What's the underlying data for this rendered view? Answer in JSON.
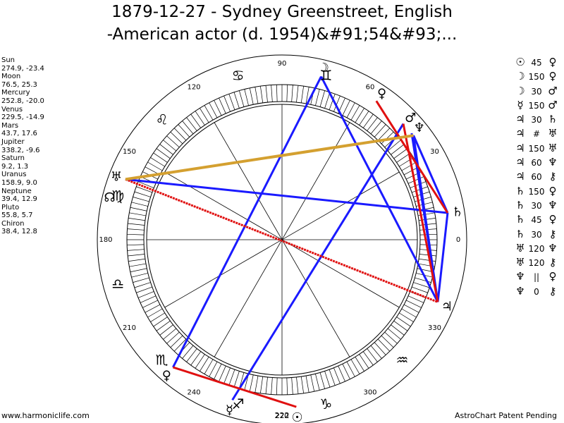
{
  "title_line1": "1879-12-27 - Sydney Greenstreet, English",
  "title_line2": "-American actor (d. 1954)&#91;54&#93;...",
  "footer_left": "www.harmoniclife.com",
  "footer_right": "AstroChart Patent Pending",
  "planets": [
    {
      "name": "Sun",
      "coords": "274.9, -23.4"
    },
    {
      "name": "Moon",
      "coords": "76.5, 25.3"
    },
    {
      "name": "Mercury",
      "coords": "252.8, -20.0"
    },
    {
      "name": "Venus",
      "coords": "229.5, -14.9"
    },
    {
      "name": "Mars",
      "coords": "43.7, 17.6"
    },
    {
      "name": "Jupiter",
      "coords": "338.2, -9.6"
    },
    {
      "name": "Saturn",
      "coords": "9.2, 1.3"
    },
    {
      "name": "Uranus",
      "coords": "158.9, 9.0"
    },
    {
      "name": "Neptune",
      "coords": "39.4, 12.9"
    },
    {
      "name": "Pluto",
      "coords": "55.8, 5.7"
    },
    {
      "name": "Chiron",
      "coords": "38.4, 12.8"
    }
  ],
  "aspects": [
    {
      "p1": "☉",
      "value": "45",
      "p2": "♀"
    },
    {
      "p1": "☽",
      "value": "150",
      "p2": "♀"
    },
    {
      "p1": "☽",
      "value": "30",
      "p2": "♂"
    },
    {
      "p1": "☿",
      "value": "150",
      "p2": "♂"
    },
    {
      "p1": "♃",
      "value": "30",
      "p2": "♄"
    },
    {
      "p1": "♃",
      "value": "#",
      "p2": "♅"
    },
    {
      "p1": "♃",
      "value": "150",
      "p2": "♅"
    },
    {
      "p1": "♃",
      "value": "60",
      "p2": "♆"
    },
    {
      "p1": "♃",
      "value": "60",
      "p2": "⚷"
    },
    {
      "p1": "♄",
      "value": "150",
      "p2": "♀"
    },
    {
      "p1": "♄",
      "value": "30",
      "p2": "♆"
    },
    {
      "p1": "♄",
      "value": "45",
      "p2": "♀"
    },
    {
      "p1": "♄",
      "value": "30",
      "p2": "⚷"
    },
    {
      "p1": "♅",
      "value": "120",
      "p2": "♆"
    },
    {
      "p1": "♅",
      "value": "120",
      "p2": "⚷"
    },
    {
      "p1": "♆",
      "value": "||",
      "p2": "♀"
    },
    {
      "p1": "♆",
      "value": "0",
      "p2": "⚷"
    }
  ],
  "degree_labels": [
    {
      "deg": 0,
      "text": "0"
    },
    {
      "deg": 30,
      "text": "30"
    },
    {
      "deg": 60,
      "text": "60"
    },
    {
      "deg": 90,
      "text": "90"
    },
    {
      "deg": 120,
      "text": "120"
    },
    {
      "deg": 150,
      "text": "150"
    },
    {
      "deg": 180,
      "text": "180"
    },
    {
      "deg": 210,
      "text": "210"
    },
    {
      "deg": 240,
      "text": "240"
    },
    {
      "deg": 270,
      "text": "270"
    },
    {
      "deg": 300,
      "text": "300"
    },
    {
      "deg": 330,
      "text": "330"
    }
  ],
  "extra_label": "222",
  "zodiac_signs": [
    {
      "deg": 75,
      "glyph": "♊"
    },
    {
      "deg": 105,
      "glyph": "♋"
    },
    {
      "deg": 135,
      "glyph": "♌"
    },
    {
      "deg": 165,
      "glyph": "♍"
    },
    {
      "deg": 195,
      "glyph": "♎"
    },
    {
      "deg": 225,
      "glyph": "♏"
    },
    {
      "deg": 255,
      "glyph": "♐"
    },
    {
      "deg": 285,
      "glyph": "♑"
    },
    {
      "deg": 315,
      "glyph": "♒"
    }
  ],
  "chart_planets": [
    {
      "name": "moon",
      "glyph": "☽",
      "deg": 76.5
    },
    {
      "name": "pluto",
      "glyph": "♀",
      "deg": 55.8
    },
    {
      "name": "mars",
      "glyph": "♂",
      "deg": 43.7
    },
    {
      "name": "neptune",
      "glyph": "♆",
      "deg": 39.4
    },
    {
      "name": "saturn",
      "glyph": "♄",
      "deg": 9.2
    },
    {
      "name": "jupiter",
      "glyph": "♃",
      "deg": 338.2
    },
    {
      "name": "uranus",
      "glyph": "♅",
      "deg": 158.9
    },
    {
      "name": "north-node",
      "glyph": "☊",
      "deg": 166
    },
    {
      "name": "venus",
      "glyph": "♀",
      "deg": 229.5
    },
    {
      "name": "mercury",
      "glyph": "☿",
      "deg": 252.8
    },
    {
      "name": "sun",
      "glyph": "☉",
      "deg": 274.9
    }
  ],
  "chart_lines": [
    {
      "a": 76.5,
      "b": 338.2,
      "color": "#1a1aff",
      "style": "solid"
    },
    {
      "a": 76.5,
      "b": 229.5,
      "color": "#1a1aff",
      "style": "solid"
    },
    {
      "a": 43.7,
      "b": 252.8,
      "color": "#1a1aff",
      "style": "solid"
    },
    {
      "a": 38.4,
      "b": 338.2,
      "color": "#1a1aff",
      "style": "solid"
    },
    {
      "a": 38.4,
      "b": 9.2,
      "color": "#1a1aff",
      "style": "solid"
    },
    {
      "a": 9.2,
      "b": 338.2,
      "color": "#1a1aff",
      "style": "solid"
    },
    {
      "a": 158.9,
      "b": 9.2,
      "color": "#1a1aff",
      "style": "solid"
    },
    {
      "a": 39.4,
      "b": 338.2,
      "color": "#1a1aff",
      "style": "solid"
    },
    {
      "a": 55.8,
      "b": 9.2,
      "color": "#e01010",
      "style": "solid"
    },
    {
      "a": 43.7,
      "b": 338.2,
      "color": "#e01010",
      "style": "solid"
    },
    {
      "a": 158.9,
      "b": 338.2,
      "color": "#e01010",
      "style": "dotted"
    },
    {
      "a": 229.5,
      "b": 274.9,
      "color": "#e01010",
      "style": "solid"
    },
    {
      "a": 158.9,
      "b": 38.4,
      "color": "#d4a030",
      "style": "solid"
    }
  ]
}
